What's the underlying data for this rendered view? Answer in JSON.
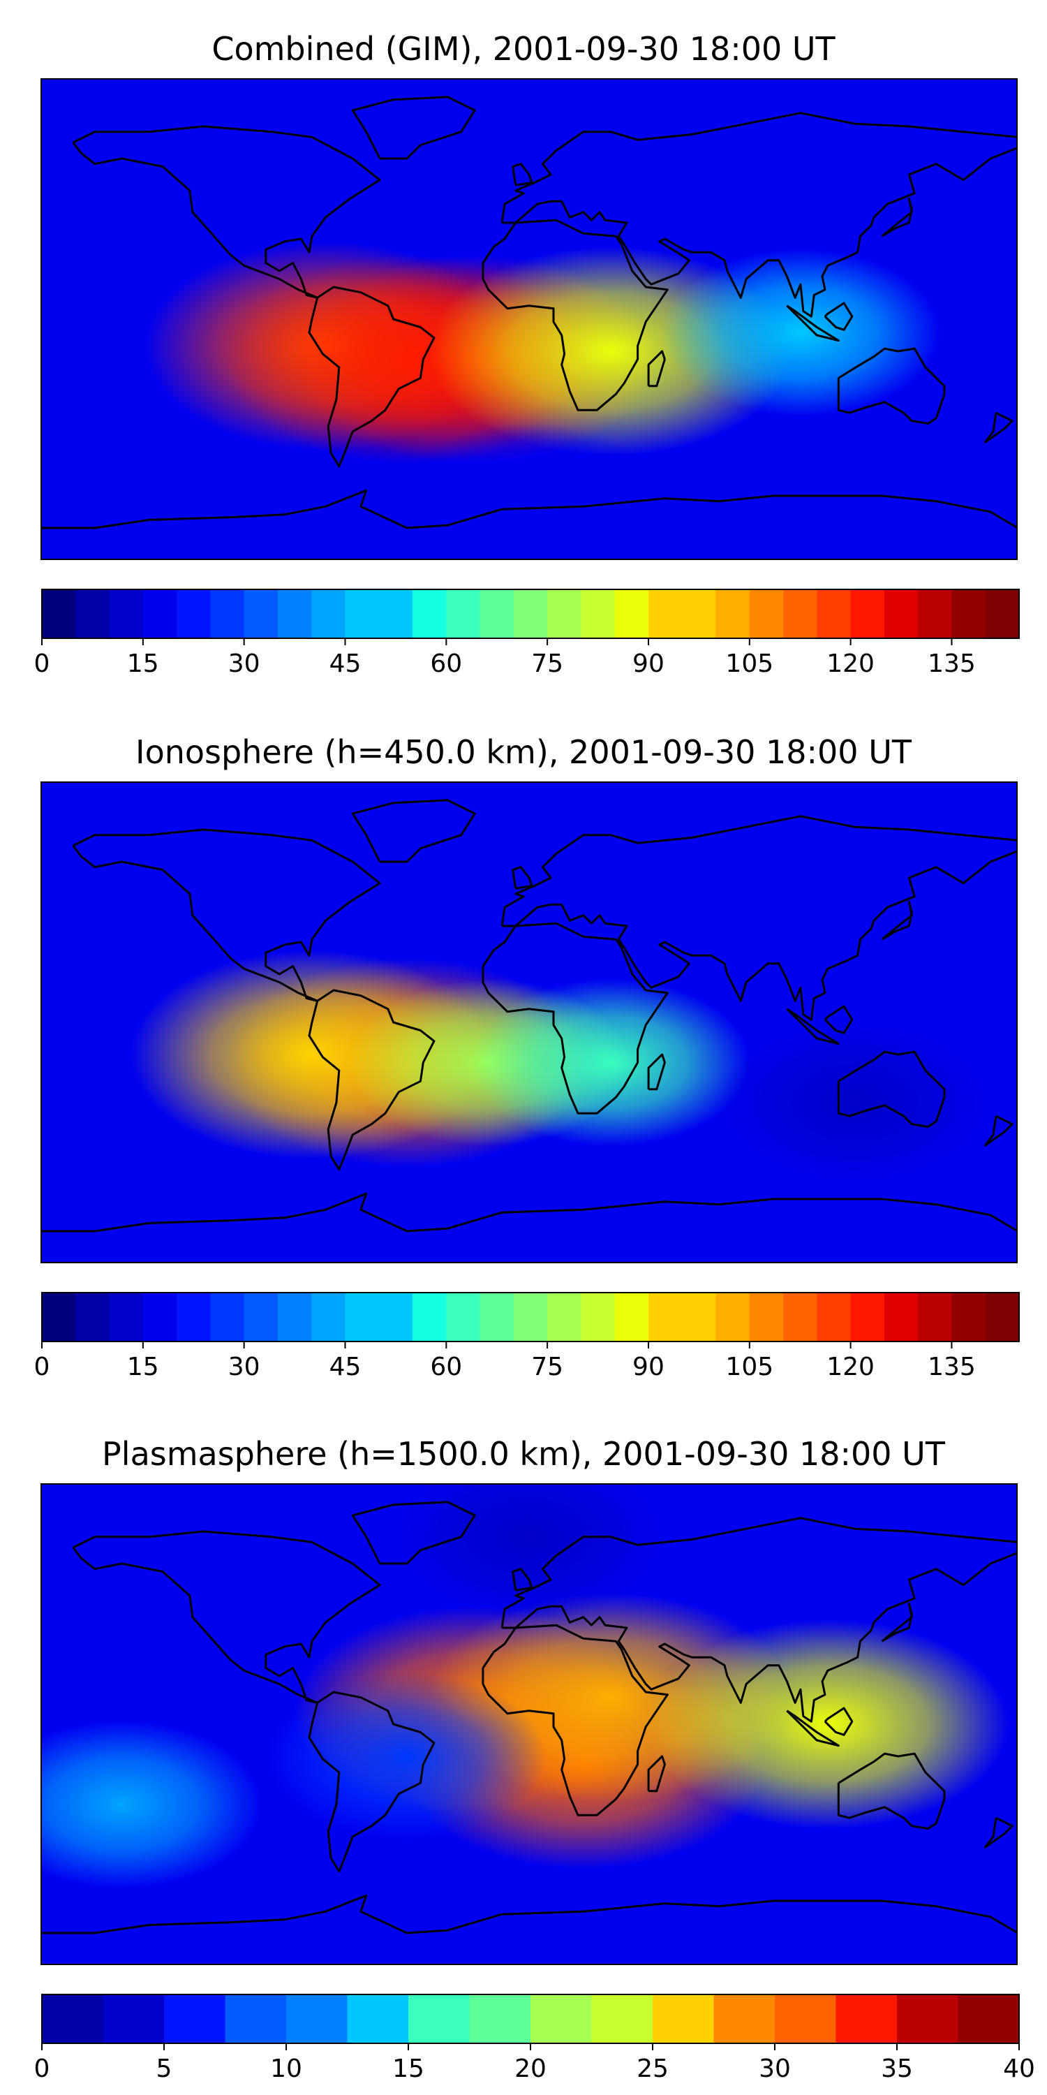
{
  "figure": {
    "colors": {
      "jet": [
        "#00007f",
        "#0000a5",
        "#0000ca",
        "#0000f0",
        "#0014ff",
        "#0038ff",
        "#005cff",
        "#0080ff",
        "#00a4ff",
        "#00c8ff",
        "#16ffe1",
        "#3affbd",
        "#5dff99",
        "#81ff75",
        "#a4ff52",
        "#c8ff2e",
        "#ebff0b",
        "#ffd200",
        "#ffad00",
        "#ff8800",
        "#ff6300",
        "#ff3e00",
        "#ff1800",
        "#e10000",
        "#ba0000",
        "#930000",
        "#7f0000"
      ],
      "coastline": "#000000",
      "frame": "#000000"
    }
  },
  "chart_data": [
    {
      "type": "heatmap",
      "title": "Combined (GIM), 2001-09-30 18:00 UT",
      "xlabel": "",
      "ylabel": "",
      "x_range_deg_longitude": [
        -180,
        180
      ],
      "y_range_deg_latitude": [
        -90,
        90
      ],
      "colorbar": {
        "vmin": 0,
        "vmax": 145,
        "levels": 29,
        "ticks": [
          0,
          15,
          30,
          45,
          60,
          75,
          90,
          105,
          120,
          135
        ]
      },
      "features": [
        {
          "lon": -45,
          "lat": -15,
          "value": 130,
          "desc": "equatorial anomaly peak over South America / South Atlantic"
        },
        {
          "lon": -75,
          "lat": -10,
          "value": 115
        },
        {
          "lon": -20,
          "lat": -15,
          "value": 125
        },
        {
          "lon": 30,
          "lat": -12,
          "value": 90
        },
        {
          "lon": 100,
          "lat": -5,
          "value": 50
        },
        {
          "lon": 0,
          "lat": 60,
          "value": 15
        },
        {
          "lon": 0,
          "lat": -70,
          "value": 15
        }
      ]
    },
    {
      "type": "heatmap",
      "title": "Ionosphere  (h=450.0 km), 2001-09-30 18:00 UT",
      "xlabel": "",
      "ylabel": "",
      "x_range_deg_longitude": [
        -180,
        180
      ],
      "y_range_deg_latitude": [
        -90,
        90
      ],
      "colorbar": {
        "vmin": 0,
        "vmax": 145,
        "levels": 29,
        "ticks": [
          0,
          15,
          30,
          45,
          60,
          75,
          90,
          105,
          120,
          135
        ]
      },
      "features": [
        {
          "lon": -45,
          "lat": -15,
          "value": 110,
          "desc": "equatorial anomaly peak over Brazil"
        },
        {
          "lon": -80,
          "lat": -12,
          "value": 95
        },
        {
          "lon": -15,
          "lat": -15,
          "value": 80
        },
        {
          "lon": 30,
          "lat": -15,
          "value": 60
        },
        {
          "lon": 0,
          "lat": 60,
          "value": 15
        },
        {
          "lon": 120,
          "lat": -30,
          "value": 10
        }
      ]
    },
    {
      "type": "heatmap",
      "title": "Plasmasphere (h=1500.0 km), 2001-09-30 18:00 UT",
      "xlabel": "",
      "ylabel": "",
      "x_range_deg_longitude": [
        -180,
        180
      ],
      "y_range_deg_latitude": [
        -90,
        90
      ],
      "colorbar": {
        "vmin": 0,
        "vmax": 40,
        "levels": 16,
        "ticks": [
          0,
          5,
          10,
          15,
          20,
          25,
          30,
          35,
          40
        ]
      },
      "features": [
        {
          "lon": 20,
          "lat": -15,
          "value": 31,
          "desc": "plasmasphere maximum over southern Africa"
        },
        {
          "lon": -20,
          "lat": 5,
          "value": 30
        },
        {
          "lon": 30,
          "lat": 10,
          "value": 27
        },
        {
          "lon": -45,
          "lat": -12,
          "value": 8,
          "desc": "local minimum over Brazil"
        },
        {
          "lon": -150,
          "lat": -30,
          "value": 12
        },
        {
          "lon": 0,
          "lat": 70,
          "value": 3
        },
        {
          "lon": 110,
          "lat": 0,
          "value": 25
        }
      ]
    }
  ]
}
